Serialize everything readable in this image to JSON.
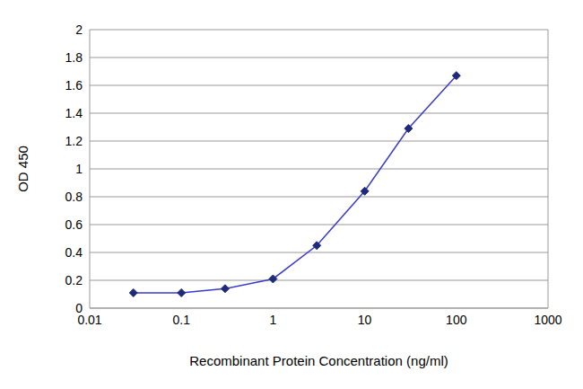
{
  "chart_data": {
    "type": "line",
    "x_label": "Recombinant Protein Concentration (ng/ml)",
    "y_label": "OD 450",
    "x": [
      0.03,
      0.1,
      0.3,
      1,
      3,
      10,
      30,
      100
    ],
    "values": [
      0.11,
      0.11,
      0.14,
      0.21,
      0.45,
      0.84,
      1.29,
      1.67
    ],
    "color": "#3a3acc",
    "marker": "diamond",
    "xlim": [
      0.01,
      1000
    ],
    "xticks": [
      0.01,
      0.1,
      1,
      10,
      100,
      1000
    ],
    "ylim": [
      0,
      2
    ],
    "yticks": [
      0,
      0.2,
      0.4,
      0.6,
      0.8,
      1,
      1.2,
      1.4,
      1.6,
      1.8,
      2
    ],
    "log": "x",
    "grid": true
  }
}
